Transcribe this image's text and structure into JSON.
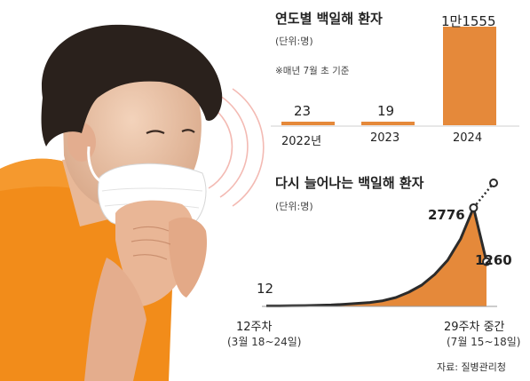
{
  "chart_data": [
    {
      "type": "bar",
      "title": "연도별 백일해 환자",
      "unit": "(단위:명)",
      "note": "※매년 7월 초 기준",
      "categories": [
        "2022년",
        "2023",
        "2024"
      ],
      "values": [
        23,
        19,
        11555
      ],
      "value_labels": [
        "23",
        "19",
        "1만1555"
      ],
      "color": "#e5893a"
    },
    {
      "type": "area",
      "title": "다시 늘어나는 백일해 환자",
      "unit": "(단위:명)",
      "x_start_label": "12주차",
      "x_start_sub": "(3월 18~24일)",
      "x_end_label": "29주차 중간",
      "x_end_sub": "(7월 15~18일)",
      "x": [
        12,
        13,
        14,
        15,
        16,
        17,
        18,
        19,
        20,
        21,
        22,
        23,
        24,
        25,
        26,
        27,
        28,
        29
      ],
      "values": [
        12,
        14,
        18,
        22,
        30,
        40,
        60,
        85,
        110,
        160,
        250,
        400,
        600,
        900,
        1300,
        1900,
        2776,
        1260
      ],
      "labeled_points": [
        {
          "x": 12,
          "label": "12"
        },
        {
          "x": 28,
          "label": "2776"
        },
        {
          "x": 29,
          "label": "1260"
        }
      ],
      "ylim": [
        0,
        3800
      ],
      "color": "#e5893a"
    }
  ],
  "source": "자료: 질병관리청",
  "colors": {
    "accent": "#e5893a",
    "line": "#2b2b2b",
    "grid": "#cfcfcf"
  }
}
